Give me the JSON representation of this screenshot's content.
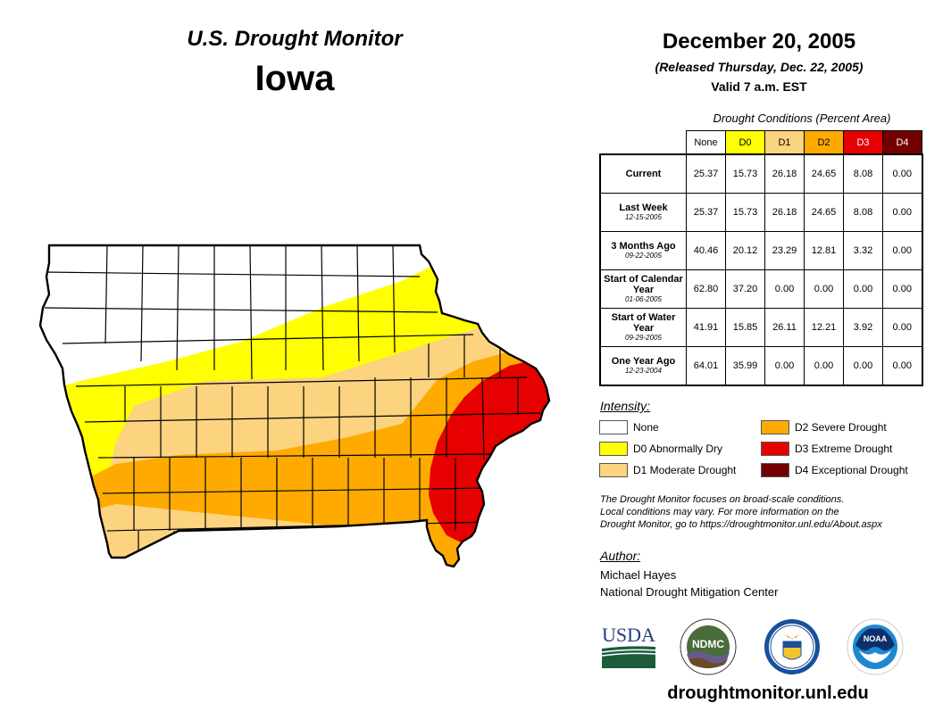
{
  "header": {
    "title": "U.S. Drought Monitor",
    "state": "Iowa",
    "date": "December 20, 2005",
    "released": "(Released Thursday, Dec. 22, 2005)",
    "valid": "Valid 7 a.m. EST"
  },
  "table": {
    "caption": "Drought Conditions (Percent Area)",
    "columns": [
      {
        "label": "None",
        "color": "#ffffff",
        "text_color": "#000000"
      },
      {
        "label": "D0",
        "color": "#ffff00",
        "text_color": "#000000"
      },
      {
        "label": "D1",
        "color": "#fcd37f",
        "text_color": "#000000"
      },
      {
        "label": "D2",
        "color": "#ffaa00",
        "text_color": "#000000"
      },
      {
        "label": "D3",
        "color": "#e60000",
        "text_color": "#ffffff"
      },
      {
        "label": "D4",
        "color": "#730000",
        "text_color": "#ffffff"
      }
    ],
    "rows": [
      {
        "label": "Current",
        "sublabel": "",
        "values": [
          "25.37",
          "15.73",
          "26.18",
          "24.65",
          "8.08",
          "0.00"
        ]
      },
      {
        "label": "Last Week",
        "sublabel": "12-15-2005",
        "values": [
          "25.37",
          "15.73",
          "26.18",
          "24.65",
          "8.08",
          "0.00"
        ]
      },
      {
        "label": "3 Months Ago",
        "sublabel": "09-22-2005",
        "values": [
          "40.46",
          "20.12",
          "23.29",
          "12.81",
          "3.32",
          "0.00"
        ]
      },
      {
        "label": "Start of Calendar Year",
        "sublabel": "01-06-2005",
        "values": [
          "62.80",
          "37.20",
          "0.00",
          "0.00",
          "0.00",
          "0.00"
        ]
      },
      {
        "label": "Start of Water Year",
        "sublabel": "09-29-2005",
        "values": [
          "41.91",
          "15.85",
          "26.11",
          "12.21",
          "3.92",
          "0.00"
        ]
      },
      {
        "label": "One Year Ago",
        "sublabel": "12-23-2004",
        "values": [
          "64.01",
          "35.99",
          "0.00",
          "0.00",
          "0.00",
          "0.00"
        ]
      }
    ]
  },
  "legend": {
    "title": "Intensity:",
    "items": [
      {
        "label": "None",
        "color": "#ffffff"
      },
      {
        "label": "D0 Abnormally Dry",
        "color": "#ffff00"
      },
      {
        "label": "D1 Moderate Drought",
        "color": "#fcd37f"
      },
      {
        "label": "D2 Severe Drought",
        "color": "#ffaa00"
      },
      {
        "label": "D3 Extreme Drought",
        "color": "#e60000"
      },
      {
        "label": "D4 Exceptional Drought",
        "color": "#730000"
      }
    ]
  },
  "disclaimer": {
    "line1": "The Drought Monitor focuses on broad-scale conditions.",
    "line2": "Local conditions may vary. For more information on the",
    "line3": "Drought Monitor, go to https://droughtmonitor.unl.edu/About.aspx"
  },
  "author": {
    "title": "Author:",
    "name": "Michael Hayes",
    "org": "National Drought Mitigation Center"
  },
  "logos": {
    "usda": "USDA",
    "ndmc": "NDMC",
    "noaa": "NOAA"
  },
  "website": "droughtmonitor.unl.edu",
  "colors": {
    "none": "#ffffff",
    "d0": "#ffff00",
    "d1": "#fcd37f",
    "d2": "#ffaa00",
    "d3": "#e60000",
    "d4": "#730000",
    "usda_blue": "#1f3f7f",
    "usda_green": "#1c5c3c",
    "ndmc_green": "#4a6b3a",
    "noaa_blue": "#1e88d0"
  }
}
